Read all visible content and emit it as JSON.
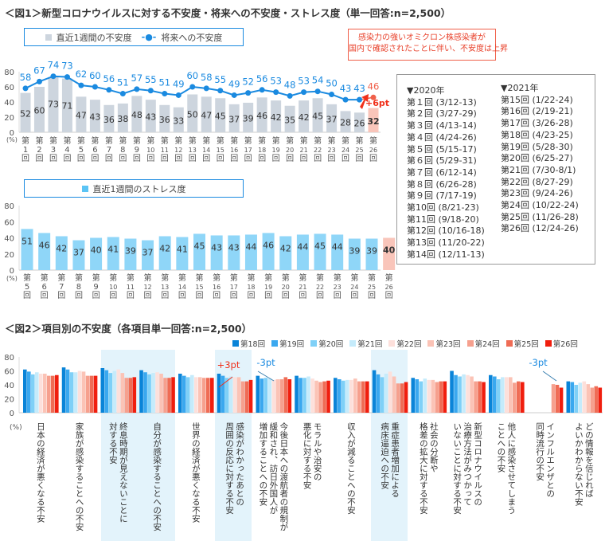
{
  "fig1": {
    "title": "＜図1＞新型コロナウイルスに対する不安度・将来への不安度・ストレス度（単一回答:n=2,500）",
    "legend_bar": "直近1週間の不安度",
    "legend_line": "将来への不安度",
    "legend_stress": "直近1週間のストレス度",
    "callout": "感染力の強いオミクロン株感染者が\n国内で確認されたことに伴い、不安度は上昇",
    "change_label": "+6pt",
    "percent_unit": "(%)"
  },
  "dates": {
    "year2020": "▼2020年",
    "year2021": "▼2021年",
    "list2020": [
      "第１回 (3/12-13)",
      "第２回 (3/27-29)",
      "第３回 (4/13-14)",
      "第４回 (4/24-26)",
      "第５回 (5/15-17)",
      "第６回 (5/29-31)",
      "第７回 (6/12-14)",
      "第８回 (6/26-28)",
      "第９回 (7/17-19)",
      "第10回 (8/21-23)",
      "第11回 (9/18-20)",
      "第12回 (10/16-18)",
      "第13回 (11/20-22)",
      "第14回 (12/11-13)"
    ],
    "list2021": [
      "第15回 (1/22-24)",
      "第16回 (2/19-21)",
      "第17回 (3/26-28)",
      "第18回 (4/23-25)",
      "第19回 (5/28-30)",
      "第20回 (6/25-27)",
      "第21回 (7/30-8/1)",
      "第22回 (8/27-29)",
      "第23回 (9/24-26)",
      "第24回 (10/22-24)",
      "第25回 (11/26-28)",
      "第26回 (12/24-26)"
    ]
  },
  "fig2": {
    "title": "＜図2＞項目別の不安度（各項目単一回答:n=2,500）",
    "percent_unit": "(%)",
    "annotations": [
      "+3pt",
      "-3pt",
      "-3pt"
    ],
    "categories": [
      "日本の経済が悪くなる不安",
      "家族が感染することへの不安",
      "終息時期が見えないことに\n対する不安",
      "自分が感染することへの不安",
      "世界の経済が悪くなる不安",
      "感染がわかったあとの\n周囲の反応に対する不安",
      "今後日本への渡航者の規制が\n緩和され、訪日外国人が\n増加することへの不安",
      "モラルや治安の\n悪化に対する不安",
      "収入が減ることへの不安",
      "重症患者増加による\n病床逼迫への不安",
      "社会の分断や\n格差の拡大に対する不安",
      "新型コロナウイルスの\n治療方法がみつかって\nいないことに対する不安",
      "他人に感染させてしまう\nことへの不安",
      "インフルエンザとの\n同時流行の不安",
      "どの情報を信じれば\nよいかわからない不安"
    ]
  },
  "chart_data": [
    {
      "type": "bar+line",
      "categories": [
        "第1回",
        "第2回",
        "第3回",
        "第4回",
        "第5回",
        "第6回",
        "第7回",
        "第8回",
        "第9回",
        "第10回",
        "第11回",
        "第12回",
        "第13回",
        "第14回",
        "第15回",
        "第16回",
        "第17回",
        "第18回",
        "第19回",
        "第20回",
        "第21回",
        "第22回",
        "第23回",
        "第24回",
        "第25回",
        "第26回"
      ],
      "series": [
        {
          "name": "直近1週間の不安度",
          "kind": "bar",
          "values": [
            52,
            60,
            73,
            71,
            47,
            43,
            36,
            38,
            48,
            43,
            36,
            33,
            50,
            47,
            45,
            37,
            39,
            46,
            42,
            35,
            42,
            45,
            37,
            28,
            26,
            32
          ]
        },
        {
          "name": "将来への不安度",
          "kind": "line",
          "values": [
            58,
            67,
            74,
            73,
            62,
            60,
            56,
            51,
            57,
            55,
            51,
            49,
            60,
            58,
            55,
            49,
            52,
            56,
            53,
            48,
            53,
            54,
            50,
            43,
            43,
            46
          ]
        }
      ],
      "ylim": [
        0,
        80
      ],
      "yticks": [
        0,
        20,
        40,
        60,
        80
      ],
      "colors": {
        "bar": "#cdd5de",
        "bar_latest": "#f9c5ba",
        "line": "#1a8ae0",
        "line_latest": "#f0604a"
      }
    },
    {
      "type": "bar",
      "categories": [
        "第5回",
        "第6回",
        "第7回",
        "第8回",
        "第9回",
        "第10回",
        "第11回",
        "第12回",
        "第13回",
        "第14回",
        "第15回",
        "第16回",
        "第17回",
        "第18回",
        "第19回",
        "第20回",
        "第21回",
        "第22回",
        "第23回",
        "第24回",
        "第25回",
        "第26回"
      ],
      "series": [
        {
          "name": "直近1週間のストレス度",
          "values": [
            51,
            46,
            42,
            37,
            40,
            41,
            39,
            37,
            42,
            41,
            45,
            43,
            43,
            44,
            46,
            42,
            44,
            45,
            44,
            39,
            39,
            40
          ]
        }
      ],
      "ylim": [
        0,
        80
      ],
      "yticks": [
        0,
        20,
        40,
        60,
        80
      ],
      "colors": {
        "bar": "#8fd6f8",
        "bar_latest": "#f9c5ba"
      }
    },
    {
      "type": "bar",
      "series_names": [
        "第18回",
        "第19回",
        "第20回",
        "第21回",
        "第22回",
        "第23回",
        "第24回",
        "第25回",
        "第26回"
      ],
      "colors": [
        "#0a84d8",
        "#3aa8ef",
        "#7fd0f7",
        "#c5ebfb",
        "#fde0db",
        "#fbc3b6",
        "#f6a08e",
        "#ef6c55",
        "#f01e0e"
      ],
      "values": [
        [
          62,
          59,
          55,
          58,
          56,
          56,
          53,
          53,
          54
        ],
        [
          65,
          62,
          58,
          58,
          60,
          59,
          53,
          53,
          53
        ],
        [
          64,
          61,
          57,
          60,
          62,
          57,
          50,
          50,
          51
        ],
        [
          61,
          58,
          55,
          57,
          58,
          56,
          50,
          50,
          51
        ],
        [
          56,
          53,
          51,
          54,
          51,
          51,
          50,
          50,
          50
        ],
        [
          56,
          53,
          50,
          52,
          51,
          51,
          45,
          45,
          47
        ],
        [
          53,
          49,
          50,
          49,
          47,
          48,
          48,
          51,
          48
        ],
        [
          53,
          50,
          50,
          52,
          49,
          46,
          44,
          45,
          46
        ],
        [
          50,
          48,
          46,
          47,
          47,
          49,
          45,
          45,
          45
        ],
        [
          61,
          55,
          51,
          56,
          59,
          52,
          42,
          42,
          44
        ],
        [
          50,
          48,
          45,
          49,
          47,
          47,
          44,
          45,
          45
        ],
        [
          60,
          54,
          52,
          55,
          54,
          52,
          45,
          45,
          44
        ],
        [
          54,
          52,
          48,
          51,
          51,
          51,
          43,
          45,
          44
        ],
        [
          null,
          null,
          null,
          null,
          null,
          null,
          41,
          40,
          36
        ],
        [
          45,
          44,
          40,
          43,
          45,
          41,
          36,
          38,
          36
        ]
      ],
      "ylim": [
        0,
        80
      ],
      "yticks": [
        0,
        20,
        40,
        60,
        80
      ]
    }
  ]
}
